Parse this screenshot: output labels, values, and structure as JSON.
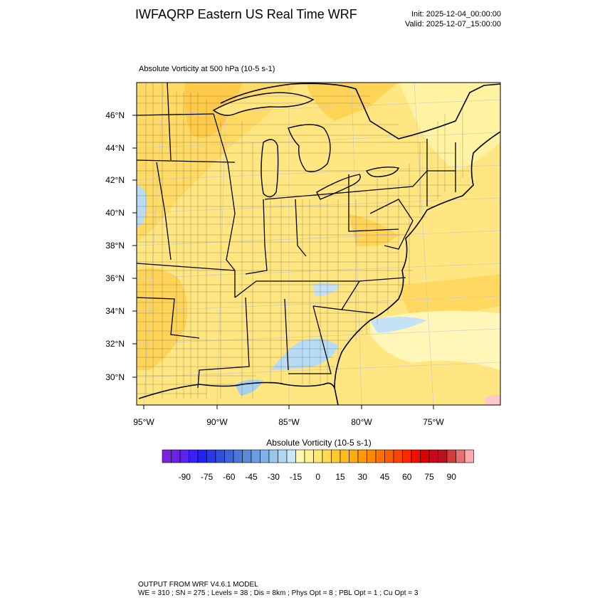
{
  "header": {
    "title": "IWFAQRP Eastern US Real Time WRF",
    "init": "Init: 2025-12-04_00:00:00",
    "valid": "Valid: 2025-12-07_15:00:00"
  },
  "plot": {
    "field_label": "Absolute Vorticity at 500 hPa   (10-5 s-1)",
    "lat_ticks": [
      "46°N",
      "44°N",
      "42°N",
      "40°N",
      "38°N",
      "36°N",
      "34°N",
      "32°N",
      "30°N"
    ],
    "lon_ticks": [
      "95°W",
      "90°W",
      "85°W",
      "80°W",
      "75°W"
    ]
  },
  "colorbar": {
    "title": "Absolute Vorticity  (10-5 s-1)",
    "labels": [
      "-90",
      "-75",
      "-60",
      "-45",
      "-30",
      "-15",
      "0",
      "15",
      "30",
      "45",
      "60",
      "75",
      "90"
    ],
    "colors": [
      "#7b22dc",
      "#6a22e6",
      "#5b22f0",
      "#3a22f6",
      "#2222f8",
      "#2838e8",
      "#3150d8",
      "#3c66d4",
      "#4a78d8",
      "#5a8ad8",
      "#6a9ee0",
      "#80b2e6",
      "#98c6ec",
      "#b0d8f2",
      "#c8e8f8",
      "#fff8b0",
      "#fff090",
      "#ffe670",
      "#ffdc50",
      "#ffcc30",
      "#ffbc20",
      "#ffaa10",
      "#ff9a00",
      "#ff8a00",
      "#ff7400",
      "#ff5e00",
      "#ff4400",
      "#ff2600",
      "#f01000",
      "#dc0000",
      "#c80818",
      "#b81020",
      "#d43c3c",
      "#e87070",
      "#ffaaaa"
    ]
  },
  "footer": {
    "line1": "OUTPUT FROM WRF V4.6.1 MODEL",
    "line2": "WE = 310 ; SN = 275 ; Levels = 38 ; Dis = 8km ; Phys Opt = 8 ; PBL Opt = 1 ; Cu Opt = 3"
  }
}
